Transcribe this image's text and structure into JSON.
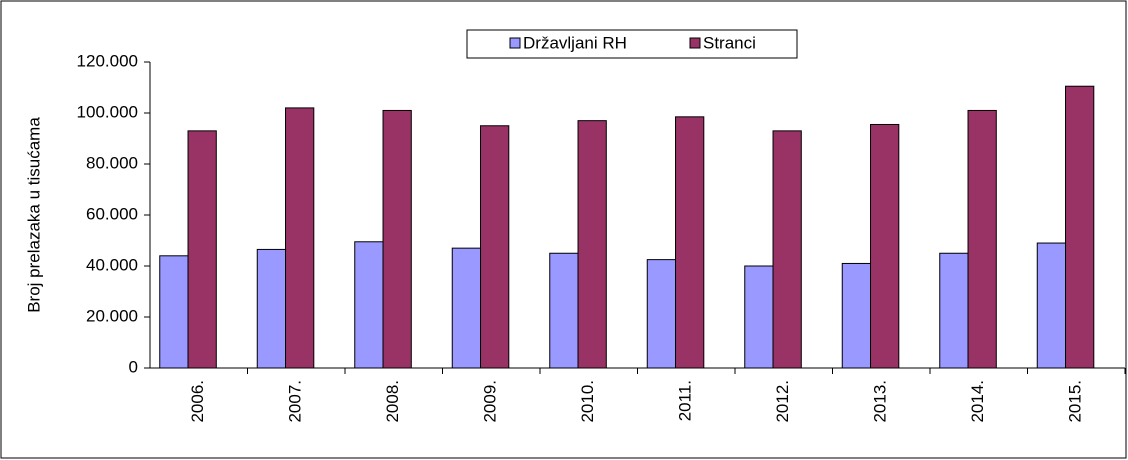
{
  "chart_data": {
    "type": "bar",
    "y_label": "Broj prelazaka u tisućama",
    "categories": [
      "2006.",
      "2007.",
      "2008.",
      "2009.",
      "2010.",
      "2011.",
      "2012.",
      "2013.",
      "2014.",
      "2015."
    ],
    "series": [
      {
        "name": "Državljani RH",
        "color": "#9999ff",
        "values": [
          44000,
          46500,
          49500,
          47000,
          45000,
          42500,
          40000,
          41000,
          45000,
          49000
        ]
      },
      {
        "name": "Stranci",
        "color": "#993366",
        "values": [
          93000,
          102000,
          101000,
          95000,
          97000,
          98500,
          93000,
          95500,
          101000,
          110500
        ]
      }
    ],
    "ylim": [
      0,
      120000
    ],
    "yticks": [
      0,
      {
        "value": 20000,
        "label": "20.000"
      },
      {
        "value": 40000,
        "label": "40.000"
      },
      {
        "value": 60000,
        "label": "60.000"
      },
      {
        "value": 80000,
        "label": "80.000"
      },
      {
        "value": 100000,
        "label": "100.000"
      },
      {
        "value": 120000,
        "label": "120.000"
      }
    ],
    "legend": "top"
  }
}
